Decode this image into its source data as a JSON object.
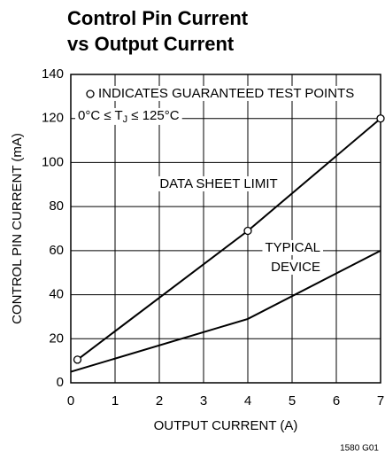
{
  "chart_data": {
    "type": "line",
    "title": [
      "Control Pin Current",
      "vs Output Current"
    ],
    "xlabel": "OUTPUT CURRENT (A)",
    "ylabel": "CONTROL PIN CURRENT (mA)",
    "xlim": [
      0,
      7
    ],
    "xticks": [
      0,
      1,
      2,
      3,
      4,
      5,
      6,
      7
    ],
    "ylim": [
      0,
      140
    ],
    "yticks": [
      0,
      20,
      40,
      60,
      80,
      100,
      120,
      140
    ],
    "grid": true,
    "series": [
      {
        "labels": [
          "DATA SHEET LIMIT"
        ],
        "color": "#000000",
        "markers": true,
        "x": [
          0.15,
          4,
          7
        ],
        "values": [
          10.5,
          69,
          120
        ]
      },
      {
        "labels": [
          "TYPICAL",
          "DEVICE"
        ],
        "color": "#000000",
        "markers": false,
        "x": [
          0,
          4,
          7
        ],
        "values": [
          5,
          29,
          60
        ]
      }
    ],
    "legend_note": "INDICATES GUARANTEED TEST POINTS",
    "condition": [
      "0°C ≤ T",
      "J",
      " ≤ 125°C"
    ],
    "footnote": "1580 G01"
  }
}
